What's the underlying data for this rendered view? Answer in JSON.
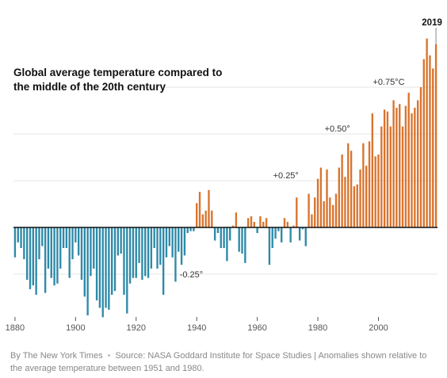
{
  "title": "Global average temperature compared to the middle of the 20th century",
  "footer": {
    "credit": "By The New York Times",
    "source": "Source: NASA Goddard Institute for Space Studies | Anomalies shown relative to the average temperature between 1951 and 1980."
  },
  "colors": {
    "positive": "#d9742e",
    "negative": "#2e8aa8",
    "axis": "#111111",
    "grid": "#e5e5e5"
  },
  "chart_data": {
    "type": "bar",
    "title": "Global average temperature compared to the middle of the 20th century",
    "xlabel": "",
    "ylabel": "",
    "ylim": [
      -0.5,
      0.95
    ],
    "x_ticks": [
      1880,
      1900,
      1920,
      1940,
      1960,
      1980,
      2000
    ],
    "x_tick_labels": [
      "1880",
      "1900",
      "1920",
      "1940",
      "1960",
      "1980",
      "2000"
    ],
    "grid": true,
    "annotations": [
      {
        "text": "-0.25°",
        "x": 1937,
        "y": -0.25
      },
      {
        "text": "+0.25°",
        "x": 1970,
        "y": 0.25
      },
      {
        "text": "+0.50°",
        "x": 1987,
        "y": 0.5
      },
      {
        "text": "+0.75°C",
        "x": 2005,
        "y": 0.75
      },
      {
        "text": "2019",
        "x": 2019,
        "y": 1.01
      }
    ],
    "x": [
      1880,
      1881,
      1882,
      1883,
      1884,
      1885,
      1886,
      1887,
      1888,
      1889,
      1890,
      1891,
      1892,
      1893,
      1894,
      1895,
      1896,
      1897,
      1898,
      1899,
      1900,
      1901,
      1902,
      1903,
      1904,
      1905,
      1906,
      1907,
      1908,
      1909,
      1910,
      1911,
      1912,
      1913,
      1914,
      1915,
      1916,
      1917,
      1918,
      1919,
      1920,
      1921,
      1922,
      1923,
      1924,
      1925,
      1926,
      1927,
      1928,
      1929,
      1930,
      1931,
      1932,
      1933,
      1934,
      1935,
      1936,
      1937,
      1938,
      1939,
      1940,
      1941,
      1942,
      1943,
      1944,
      1945,
      1946,
      1947,
      1948,
      1949,
      1950,
      1951,
      1952,
      1953,
      1954,
      1955,
      1956,
      1957,
      1958,
      1959,
      1960,
      1961,
      1962,
      1963,
      1964,
      1965,
      1966,
      1967,
      1968,
      1969,
      1970,
      1971,
      1972,
      1973,
      1974,
      1975,
      1976,
      1977,
      1978,
      1979,
      1980,
      1981,
      1982,
      1983,
      1984,
      1985,
      1986,
      1987,
      1988,
      1989,
      1990,
      1991,
      1992,
      1993,
      1994,
      1995,
      1996,
      1997,
      1998,
      1999,
      2000,
      2001,
      2002,
      2003,
      2004,
      2005,
      2006,
      2007,
      2008,
      2009,
      2010,
      2011,
      2012,
      2013,
      2014,
      2015,
      2016,
      2017,
      2018,
      2019
    ],
    "values": [
      -0.16,
      -0.08,
      -0.11,
      -0.17,
      -0.28,
      -0.33,
      -0.31,
      -0.36,
      -0.17,
      -0.1,
      -0.35,
      -0.22,
      -0.27,
      -0.31,
      -0.3,
      -0.22,
      -0.11,
      -0.11,
      -0.27,
      -0.17,
      -0.08,
      -0.15,
      -0.28,
      -0.37,
      -0.47,
      -0.26,
      -0.22,
      -0.39,
      -0.43,
      -0.48,
      -0.43,
      -0.44,
      -0.36,
      -0.34,
      -0.15,
      -0.14,
      -0.36,
      -0.46,
      -0.3,
      -0.27,
      -0.27,
      -0.19,
      -0.28,
      -0.26,
      -0.27,
      -0.22,
      -0.11,
      -0.22,
      -0.2,
      -0.36,
      -0.16,
      -0.1,
      -0.16,
      -0.29,
      -0.13,
      -0.2,
      -0.15,
      -0.03,
      -0.02,
      -0.02,
      0.13,
      0.19,
      0.07,
      0.09,
      0.2,
      0.09,
      -0.07,
      -0.03,
      -0.11,
      -0.11,
      -0.18,
      -0.07,
      0.01,
      0.08,
      -0.13,
      -0.14,
      -0.19,
      0.05,
      0.06,
      0.03,
      -0.03,
      0.06,
      0.03,
      0.05,
      -0.2,
      -0.11,
      -0.06,
      -0.02,
      -0.08,
      0.05,
      0.03,
      -0.08,
      0.01,
      0.16,
      -0.07,
      -0.01,
      -0.1,
      0.18,
      0.07,
      0.16,
      0.26,
      0.32,
      0.14,
      0.31,
      0.16,
      0.12,
      0.18,
      0.32,
      0.39,
      0.27,
      0.45,
      0.41,
      0.22,
      0.23,
      0.31,
      0.45,
      0.33,
      0.46,
      0.61,
      0.38,
      0.39,
      0.54,
      0.63,
      0.62,
      0.54,
      0.68,
      0.64,
      0.66,
      0.54,
      0.65,
      0.72,
      0.61,
      0.64,
      0.68,
      0.75,
      0.9,
      1.01,
      0.92,
      0.85,
      0.98
    ]
  }
}
